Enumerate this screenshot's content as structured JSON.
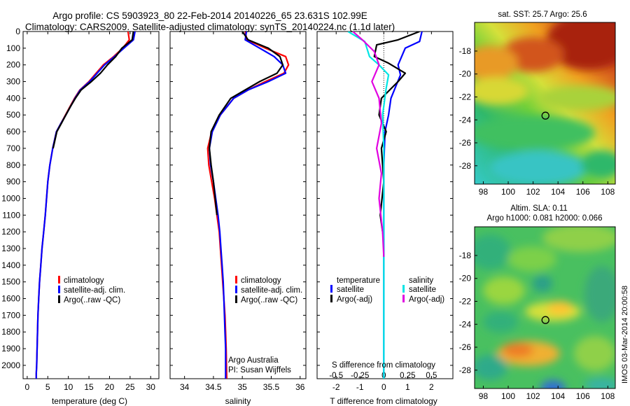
{
  "header": {
    "title_line1": "Argo profile: CS 5903923_80 22-Feb-2014 20140226_65 23.631S 102.99E",
    "title_line2": "Climatology: CARS2009. Satellite-adjusted climatology: synTS_20140224.nc (1.1d later)"
  },
  "colors": {
    "climatology": "#ff0000",
    "satellite": "#0000ff",
    "argo": "#000000",
    "salinity_satellite": "#00e5e5",
    "salinity_argo": "#e000e0"
  },
  "credit": {
    "line1": "Argo Australia",
    "line2": "PI: Susan Wijffels"
  },
  "watermark": "IMOS 03-Mar-2014 20:00:58",
  "chart_data": [
    {
      "id": "temperature",
      "type": "line",
      "xlabel": "temperature (deg C)",
      "ylabel": "",
      "xlim": [
        -1,
        32
      ],
      "ylim": [
        2080,
        0
      ],
      "xticks": [
        0,
        5,
        10,
        15,
        20,
        25,
        30
      ],
      "yticks": [
        0,
        100,
        200,
        300,
        400,
        500,
        600,
        700,
        800,
        900,
        1000,
        1100,
        1200,
        1300,
        1400,
        1500,
        1600,
        1700,
        1800,
        1900,
        2000
      ],
      "legend": {
        "position": "lower-center",
        "entries": [
          "climatology",
          "satellite-adj. clim.",
          "Argo(..raw -QC)"
        ]
      },
      "series": [
        {
          "name": "climatology",
          "color_key": "climatology",
          "x": [
            24.5,
            24.8,
            23.2,
            21.0,
            18.5,
            15.0,
            12.8,
            11.5,
            10.4,
            9.3,
            8.2,
            7.1,
            6.2,
            5.5,
            5.0,
            4.7,
            4.4,
            4.0,
            3.6,
            3.3,
            3.0,
            2.8,
            2.6,
            2.5,
            2.4,
            2.3,
            2.2,
            2.2
          ],
          "y": [
            0,
            50,
            100,
            150,
            200,
            300,
            350,
            400,
            450,
            500,
            550,
            600,
            700,
            800,
            900,
            1000,
            1100,
            1200,
            1300,
            1400,
            1500,
            1600,
            1700,
            1800,
            1900,
            2000,
            2050,
            2080
          ]
        },
        {
          "name": "satellite-adj. clim.",
          "color_key": "satellite",
          "x": [
            26.2,
            25.8,
            23.5,
            21.2,
            18.8,
            15.2,
            12.9,
            11.6,
            10.5,
            9.4,
            8.2,
            7.1,
            6.2,
            5.5,
            5.0,
            4.7,
            4.4,
            4.0,
            3.6,
            3.3,
            3.0,
            2.8,
            2.6,
            2.5,
            2.4,
            2.3,
            2.2,
            2.2
          ],
          "y": [
            0,
            50,
            100,
            150,
            200,
            300,
            350,
            400,
            450,
            500,
            550,
            600,
            700,
            800,
            900,
            1000,
            1100,
            1200,
            1300,
            1400,
            1500,
            1600,
            1700,
            1800,
            1900,
            2000,
            2050,
            2080
          ]
        },
        {
          "name": "Argo(..raw -QC)",
          "color_key": "argo",
          "x": [
            25.8,
            25.5,
            23.0,
            21.5,
            19.5,
            17.8,
            15.6,
            13.1,
            11.7,
            10.5,
            9.4,
            8.3,
            7.2,
            6.3
          ],
          "y": [
            0,
            50,
            100,
            150,
            200,
            250,
            300,
            350,
            400,
            450,
            500,
            550,
            600,
            700
          ]
        }
      ]
    },
    {
      "id": "salinity",
      "type": "line",
      "xlabel": "salinity",
      "ylabel": "",
      "xlim": [
        33.75,
        36.1
      ],
      "ylim": [
        2080,
        0
      ],
      "xticks": [
        34,
        34.5,
        35,
        35.5,
        36
      ],
      "legend": {
        "position": "lower-center",
        "entries": [
          "climatology",
          "satellite-adj. clim.",
          "Argo(..raw -QC)"
        ]
      },
      "series": [
        {
          "name": "climatology",
          "color_key": "climatology",
          "x": [
            35.05,
            35.08,
            35.4,
            35.75,
            35.8,
            35.72,
            35.4,
            35.1,
            34.85,
            34.62,
            34.47,
            34.4,
            34.42,
            34.47,
            34.52,
            34.56,
            34.6,
            34.62,
            34.64,
            34.66,
            34.68,
            34.7,
            34.71,
            34.72,
            34.73
          ],
          "y": [
            0,
            50,
            100,
            150,
            200,
            250,
            300,
            350,
            400,
            500,
            600,
            700,
            800,
            900,
            1000,
            1100,
            1200,
            1300,
            1400,
            1500,
            1600,
            1700,
            1800,
            1900,
            2080
          ]
        },
        {
          "name": "satellite-adj. clim.",
          "color_key": "satellite",
          "x": [
            35.07,
            35.05,
            35.3,
            35.55,
            35.7,
            35.75,
            35.45,
            35.1,
            34.85,
            34.62,
            34.48,
            34.43,
            34.45,
            34.5,
            34.54,
            34.58,
            34.61,
            34.63,
            34.65,
            34.67,
            34.68,
            34.69,
            34.7,
            34.71,
            34.71
          ],
          "y": [
            0,
            50,
            100,
            150,
            200,
            250,
            300,
            350,
            400,
            500,
            600,
            700,
            800,
            900,
            1000,
            1100,
            1200,
            1300,
            1400,
            1500,
            1600,
            1700,
            1800,
            1900,
            2080
          ]
        },
        {
          "name": "Argo(..raw -QC)",
          "color_key": "argo",
          "x": [
            35.0,
            35.1,
            35.45,
            35.65,
            35.7,
            35.6,
            35.3,
            35.05,
            34.8,
            34.6,
            34.46,
            34.43,
            34.46,
            34.5,
            34.53,
            34.56
          ],
          "y": [
            0,
            50,
            100,
            150,
            200,
            250,
            300,
            350,
            400,
            500,
            600,
            700,
            800,
            900,
            1000,
            1100
          ]
        }
      ]
    },
    {
      "id": "difference",
      "type": "line",
      "xlabel": "T difference from climatology",
      "xlabel_top": "S difference from climatology",
      "xlim": [
        -2.8,
        2.9
      ],
      "ylim": [
        2080,
        0
      ],
      "xticks": [
        -2,
        -1,
        0,
        1,
        2
      ],
      "xticks_top": [
        -0.5,
        -0.25,
        0,
        0.25,
        0.5
      ],
      "xticks_top_labels": [
        "-0.5",
        "-0.25",
        "0",
        "0.25",
        "0.5"
      ],
      "reference_line_x": 0,
      "legend_titles": [
        "temperature",
        "salinity"
      ],
      "legend": {
        "position": "lower-center",
        "entries": [
          "satellite",
          "Argo(-adj)",
          "satellite",
          "Argo(-adj)"
        ]
      },
      "series": [
        {
          "name": "satellite",
          "group": "temperature",
          "color_key": "satellite",
          "x": [
            1.6,
            1.5,
            0.9,
            0.6,
            0.7,
            0.5,
            0.3,
            0.2,
            0.05,
            0.0,
            0.0,
            0.0
          ],
          "y": [
            0,
            60,
            100,
            200,
            260,
            330,
            400,
            500,
            600,
            800,
            1200,
            2080
          ]
        },
        {
          "name": "Argo(-adj)",
          "group": "temperature",
          "color_key": "argo",
          "x": [
            1.5,
            0.6,
            -0.3,
            -0.4,
            0.2,
            0.9,
            0.6,
            -0.1,
            -0.2,
            0.1,
            -0.1,
            0.0,
            -0.15,
            0.0
          ],
          "y": [
            0,
            50,
            80,
            150,
            190,
            250,
            300,
            400,
            500,
            600,
            700,
            900,
            1100,
            1250
          ]
        },
        {
          "name": "satellite",
          "group": "salinity",
          "color_key": "salinity_satellite",
          "x": [
            -1.5,
            -0.8,
            -0.6,
            -0.2,
            0.2,
            0.1,
            -0.05,
            0.0,
            0.0,
            0.0,
            0.0
          ],
          "y": [
            0,
            60,
            150,
            200,
            260,
            340,
            500,
            700,
            1000,
            1500,
            2080
          ]
        },
        {
          "name": "Argo(-adj)",
          "group": "salinity",
          "color_key": "salinity_argo",
          "x": [
            -1.3,
            -0.9,
            -0.4,
            -0.2,
            -0.5,
            -0.2,
            -0.1,
            -0.3,
            -0.1,
            -0.2,
            -0.05,
            0.0
          ],
          "y": [
            0,
            50,
            120,
            200,
            300,
            400,
            550,
            700,
            850,
            1000,
            1200,
            1350
          ]
        }
      ]
    },
    {
      "id": "sst_map",
      "type": "heatmap",
      "title": "sat. SST: 25.7 Argo: 25.6",
      "xlim": [
        97.3,
        108.6
      ],
      "ylim": [
        -29.6,
        -15.5
      ],
      "xticks": [
        98,
        100,
        102,
        104,
        106,
        108
      ],
      "yticks": [
        -18,
        -20,
        -22,
        -24,
        -26,
        -28
      ],
      "marker": {
        "lon": 102.99,
        "lat": -23.631
      }
    },
    {
      "id": "sla_map",
      "type": "heatmap",
      "title_line1": "Altim. SLA: 0.11",
      "title_line2": "Argo h1000: 0.081 h2000: 0.066",
      "xlim": [
        97.3,
        108.6
      ],
      "ylim": [
        -29.6,
        -15.5
      ],
      "xticks": [
        98,
        100,
        102,
        104,
        106,
        108
      ],
      "yticks": [
        -18,
        -20,
        -22,
        -24,
        -26,
        -28
      ],
      "marker": {
        "lon": 102.99,
        "lat": -23.631
      }
    }
  ]
}
